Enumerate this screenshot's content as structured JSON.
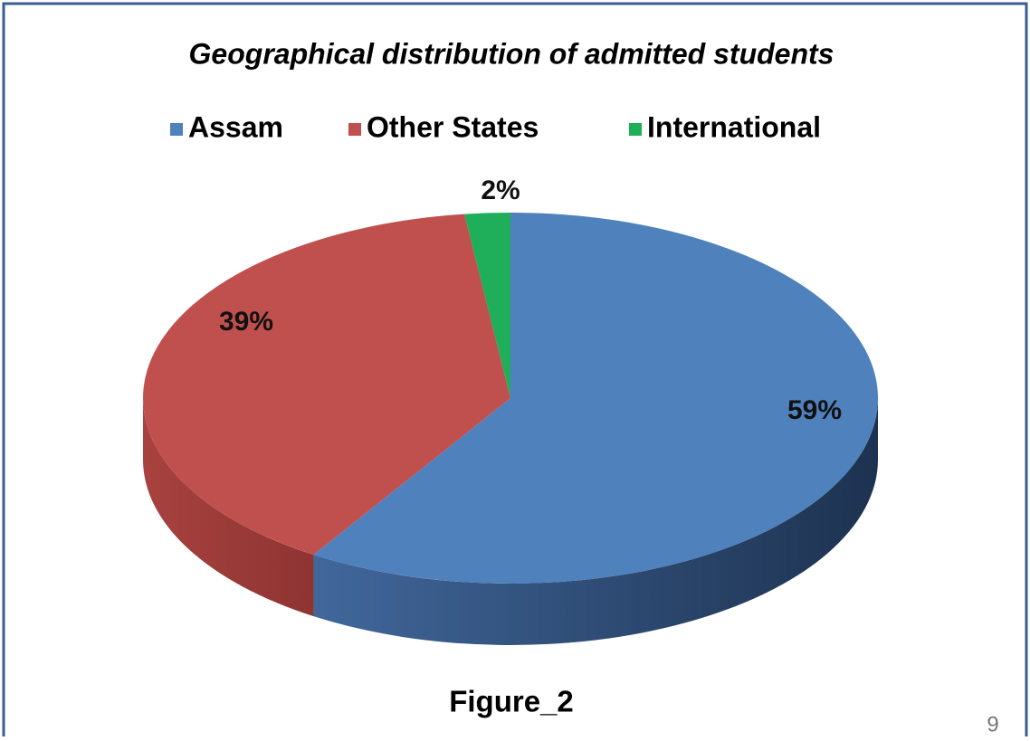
{
  "chart_data": {
    "type": "pie",
    "title": "Geographical distribution of admitted students",
    "categories": [
      "Assam",
      "Other States",
      "International"
    ],
    "values": [
      59,
      39,
      2
    ],
    "value_labels": [
      "59%",
      "39%",
      "2%"
    ],
    "colors": [
      "#4f81bd",
      "#c0504d",
      "#1fae5a"
    ],
    "legend": "top",
    "caption": "Figure_2",
    "page_number": "9"
  }
}
